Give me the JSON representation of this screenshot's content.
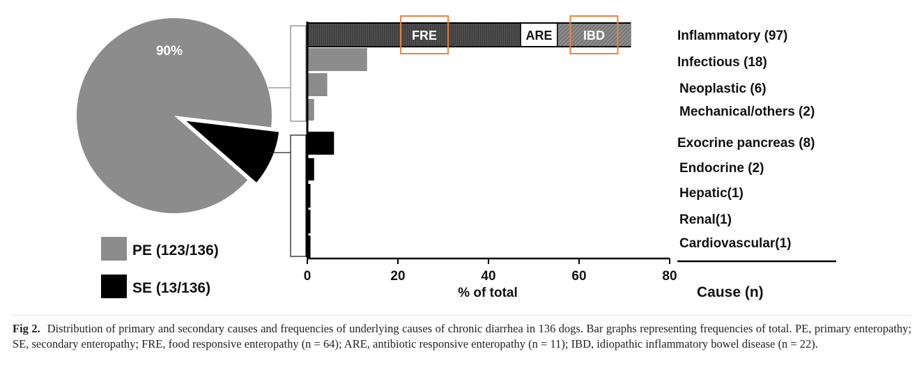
{
  "colors": {
    "pe": "#8c8c8c",
    "se": "#000000",
    "infl_dark": "#3a3a3a",
    "ibd_fill": "#7a7a7a",
    "highlight": "#e8833a"
  },
  "chart_data": [
    {
      "type": "pie",
      "slices": [
        {
          "label": "PE (123/136)",
          "value": 123,
          "color": "#8c8c8c"
        },
        {
          "label": "SE (13/136)",
          "value": 13,
          "color": "#000000"
        }
      ],
      "data_label": "90%",
      "legend": "bottom-left"
    },
    {
      "type": "bar",
      "orientation": "horizontal",
      "xlabel": "% of total",
      "ylabel": "Cause (n)",
      "xlim": [
        0,
        80
      ],
      "xticks": [
        "0",
        "20",
        "40",
        "60",
        "80"
      ],
      "groups": [
        {
          "name": "PE",
          "start": 0,
          "end": 3
        },
        {
          "name": "SE",
          "start": 4,
          "end": 8
        }
      ],
      "bars": [
        {
          "label": "Inflammatory (97)",
          "value": 71.3,
          "color": "#3a3a3a",
          "segments": [
            {
              "label": "FRE",
              "value": 47.1,
              "color": "#3a3a3a"
            },
            {
              "label": "ARE",
              "value": 8.1,
              "color": "#ffffff"
            },
            {
              "label": "IBD",
              "value": 16.2,
              "color": "#7a7a7a"
            }
          ]
        },
        {
          "label": "Infectious (18)",
          "value": 13.2,
          "color": "#8c8c8c"
        },
        {
          "label": "Neoplastic (6)",
          "value": 4.4,
          "color": "#8c8c8c"
        },
        {
          "label": "Mechanical/others (2)",
          "value": 1.5,
          "color": "#8c8c8c"
        },
        {
          "label": "Exocrine pancreas (8)",
          "value": 5.9,
          "color": "#000000"
        },
        {
          "label": "Endocrine (2)",
          "value": 1.5,
          "color": "#000000"
        },
        {
          "label": "Hepatic(1)",
          "value": 0.7,
          "color": "#000000"
        },
        {
          "label": "Renal(1)",
          "value": 0.7,
          "color": "#000000"
        },
        {
          "label": "Cardiovascular(1)",
          "value": 0.7,
          "color": "#000000"
        }
      ],
      "highlighted_segments": [
        "FRE",
        "IBD"
      ]
    }
  ],
  "caption": {
    "label": "Fig 2.",
    "text": "Distribution of primary and secondary causes and frequencies of underlying causes of chronic diarrhea in 136 dogs. Bar graphs representing frequencies of total. PE, primary enteropathy; SE, secondary enteropathy; FRE, food responsive enteropathy (n = 64); ARE, antibiotic responsive enteropathy (n = 11); IBD, idiopathic inflammatory bowel disease (n = 22)."
  }
}
